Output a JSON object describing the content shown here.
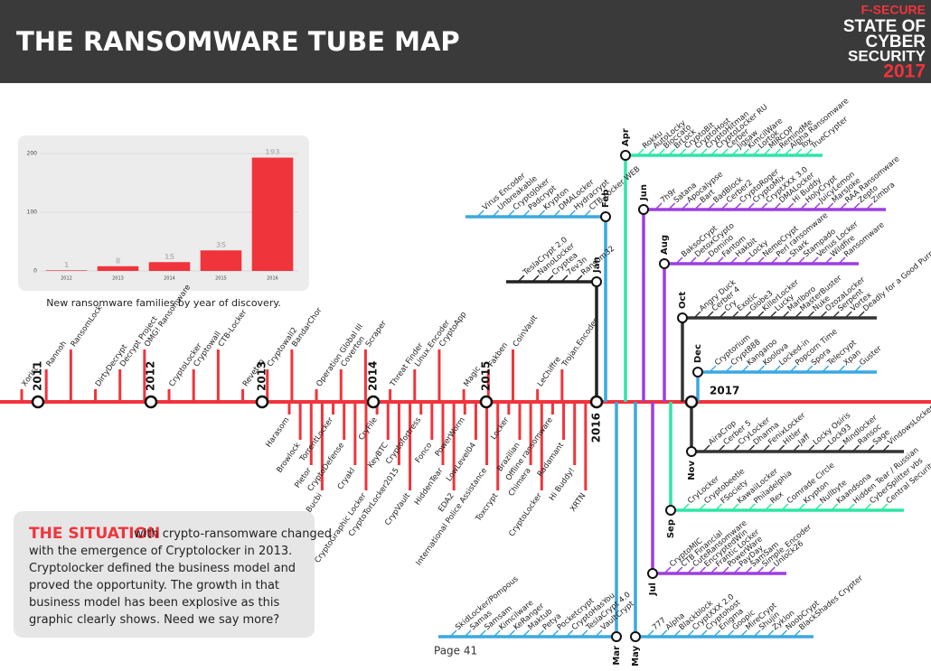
{
  "header": {
    "title": "THE RANSOMWARE TUBE MAP",
    "logo": [
      "F-SECURE",
      "STATE OF",
      "CYBER",
      "SECURITY",
      "2017"
    ]
  },
  "chart_data": {
    "type": "bar",
    "caption": "New ransomware families by year of discovery.",
    "categories": [
      "2012",
      "2013",
      "2014",
      "2015",
      "2016"
    ],
    "values": [
      1,
      8,
      15,
      35,
      193
    ],
    "color": "#f0343c",
    "ylim": [
      0,
      200
    ],
    "yticks": [
      0,
      100,
      200
    ],
    "grid": true
  },
  "situation": {
    "heading": "THE SITUATION",
    "text": "with crypto-ransomware changed with the emergence of Cryptolocker in 2013. Cryptolocker defined the business model and proved the opportunity. The growth in that business model has been explosive as this graphic clearly shows. Need we say more?"
  },
  "page": "Page 41",
  "tube_map": {
    "years": [
      "2011",
      "2012",
      "2013",
      "2014",
      "2015",
      "2016",
      "2017"
    ],
    "above": [
      "Xorist",
      "Rannoh",
      "RansomLock",
      "DirtyDecrypt",
      "Decrypt Project",
      "OMG! Ransomware",
      "CryptoLocker",
      "Cryptowall",
      "CTB-Locker",
      "Reveton",
      "Cryptowall2",
      "BandarChor",
      "Operation Global III",
      "Coverton",
      "Scraper",
      "Threat Finder",
      "Linux.Encoder",
      "CryptoApp",
      "Magic",
      "Fakben",
      "CoinVault",
      "LeChiffre",
      "Trojan.Encoder"
    ],
    "below": [
      "Harasom",
      "Browlock",
      "Pletor",
      "Bucbi",
      "TorrentLocker",
      "CryptoDefense",
      "Cryakl",
      "CryptoGraphic Locker",
      "CryFile",
      "KeyBTC",
      "CryptoTorLocker2015",
      "CrypVault",
      "Cryptofortress",
      "Fonco",
      "HiddenTear",
      "EDA2",
      "PowerWorm",
      "LowLevel04",
      "International Police Assistance",
      "Toxcrypt",
      "Locker",
      "Brazilian",
      "Chimera",
      "CryptoLocker",
      "Offline ransomware",
      "Radamant",
      "Hi Buddy!",
      "XRTN"
    ],
    "branches": [
      {
        "month": "Apr",
        "color": "#2ee6a6",
        "names": [
          "Rokku",
          "AutoLocky",
          "Bloccato",
          "BrLock",
          "CryptoBit",
          "CryptoHost",
          "CryptoHitman",
          "CryptoLocker RU",
          "Cerber",
          "Jigsaw",
          "KimcilWare",
          "Lortok",
          "MIRCOP",
          "RemindMe",
          "Alpha Ransomware",
          "Tox",
          "TrueCrypter"
        ]
      },
      {
        "month": "Jun",
        "color": "#9b3fe0",
        "names": [
          "7h9r",
          "Satana",
          "Apocalypse",
          "Bart",
          "BadBlock",
          "Cerber2",
          "CryptoRoger",
          "CryptoMix",
          "CryptXXX 3.0",
          "DMALocker",
          "Hi Buddy",
          "HolyCrypt",
          "JuicyLemon",
          "MarsJoke",
          "RAA Ransomware",
          "Zepto",
          "Zimbra"
        ]
      },
      {
        "month": "Aug",
        "color": "#9b3fe0",
        "names": [
          "BaksoCrypt",
          "DetoxCrypto",
          "Domino",
          "Fantom",
          "Hakbit",
          "Locky",
          "NemeCrypt",
          "Perl ransomware",
          "Shark",
          "Stampado",
          "Venus Locker",
          "Wildfire",
          "Ransomware"
        ]
      },
      {
        "month": "Oct",
        "color": "#333333",
        "names": [
          "Angry Duck",
          "Cerber 4",
          "Cry",
          "Exotic",
          "Globe3",
          "KillerLocker",
          "Lucky",
          "Marlboro",
          "MasterBuster",
          "Nuke",
          "OzozaLocker",
          "Serpent",
          "Vortex",
          "Deadly for a Good Purpose"
        ]
      },
      {
        "month": "Dec",
        "color": "#3aa8e0",
        "names": [
          "Cryptorium",
          "Crypt888",
          "Kangaroo",
          "Koolova",
          "Locked-in",
          "Popcorn Time",
          "Spora",
          "Telecrypt",
          "Xpan",
          "Guster"
        ]
      },
      {
        "month": "Nov",
        "color": "#333333",
        "names": [
          "AiraCrop",
          "Cerber 5",
          "CryLocker",
          "Dharma",
          "FenixLocker",
          "Hitler",
          "Jaff",
          "Locky Osiris",
          "Lock93",
          "Mindlocker",
          "Ransoc",
          "Sage",
          "VindowsLocker"
        ]
      },
      {
        "month": "Sep",
        "color": "#2ee6a6",
        "names": [
          "CryLocker",
          "Cryptobeetle",
          "FSociety",
          "KawaiiLocker",
          "Philadelphia",
          "Rex",
          "Comrade Circle",
          "Krypton",
          "Nullbyte",
          "Kaandsona",
          "Hidden Tear / Russian",
          "CyberSplitter vbs",
          "Central Security Treatment Organization"
        ]
      },
      {
        "month": "Jul",
        "color": "#9b3fe0",
        "names": [
          "CryptoMIC",
          "CTB Financial",
          "CuteRansomware",
          "EncryptedWin",
          "Frantic Locker",
          "PowerWare",
          "PayDay",
          "SamSam",
          "Simple_Encoder",
          "Unlock26"
        ]
      },
      {
        "month": "May",
        "color": "#3aa8e0",
        "names": [
          "777",
          "Alpha",
          "Blackblock",
          "CryptXXX 2.0",
          "Cryptohost",
          "Enigma",
          "Goopic",
          "MireCrypt",
          "Shujin",
          "Zyklon",
          "NoobCrypt",
          "BlackShades Crypter"
        ]
      },
      {
        "month": "Mar",
        "color": "#3aa8e0",
        "names": [
          "SkidLocker/Pompous",
          "Samas",
          "Samsam",
          "Kimcilware",
          "KeRanger",
          "Maktub",
          "Petya",
          "Pocketcrypt",
          "CryptoHasYou",
          "TeslaCrypt 4.0",
          "VaultCrypt"
        ]
      },
      {
        "month": "Feb",
        "color": "#3aa8e0",
        "names": [
          "Virus Encoder",
          "Unbreakable",
          "CryptoJoker",
          "Padcrypt",
          "Krypton",
          "DMALocker",
          "Hydracrypt",
          "CTB-Locker WEB"
        ]
      },
      {
        "month": "Jan",
        "color": "#222222",
        "names": [
          "TeslaCrypt 2.0",
          "NanoLocker",
          "Cryptea",
          "7ev3n",
          "Ransom32"
        ]
      }
    ]
  }
}
